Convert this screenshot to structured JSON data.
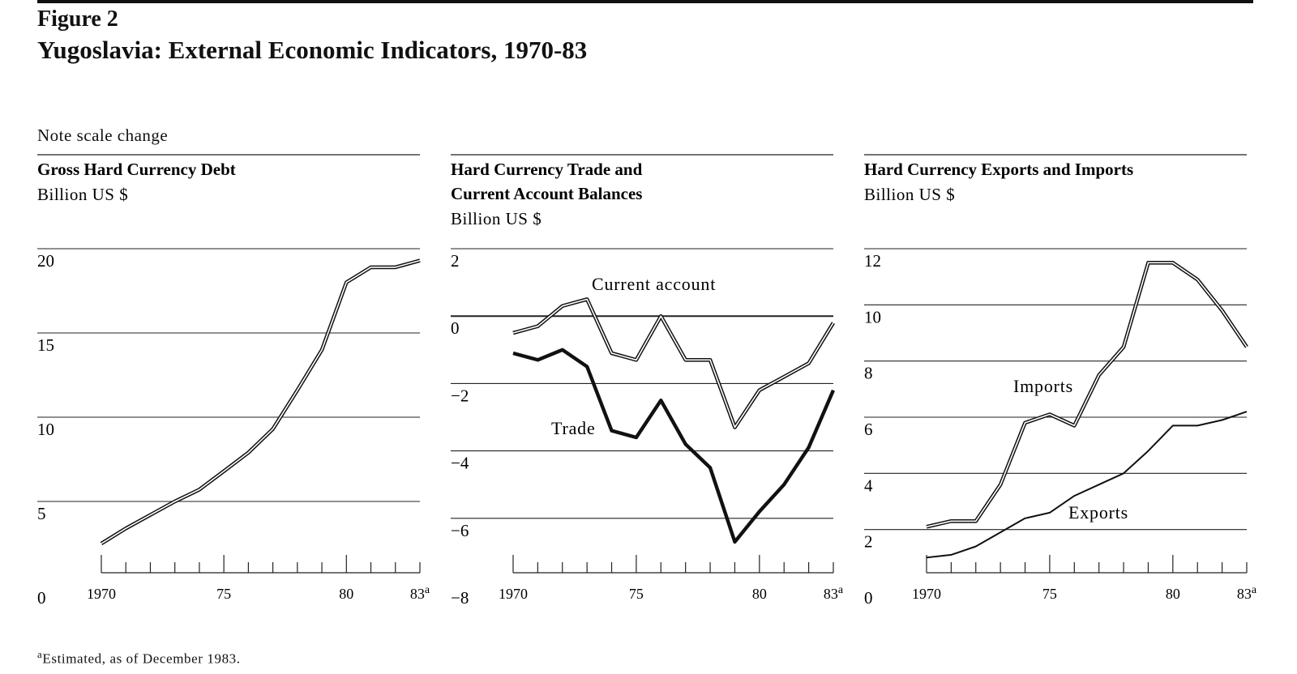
{
  "figure": {
    "label": "Figure 2",
    "title": "Yugoslavia: External Economic Indicators, 1970-83",
    "note": "Note scale change",
    "footnote_marker": "a",
    "footnote": "Estimated, as of December 1983."
  },
  "chart_data": [
    {
      "type": "line",
      "title": "Gross Hard Currency Debt",
      "ylabel": "Billion US $",
      "x": [
        1970,
        1971,
        1972,
        1973,
        1974,
        1975,
        1976,
        1977,
        1978,
        1979,
        1980,
        1981,
        1982,
        1983
      ],
      "xlim": [
        1970,
        1983
      ],
      "ylim": [
        0,
        20
      ],
      "yticks": [
        0,
        5,
        10,
        15,
        20
      ],
      "xtick_labels": [
        {
          "x": 1970,
          "label": "1970"
        },
        {
          "x": 1975,
          "label": "75"
        },
        {
          "x": 1980,
          "label": "80"
        },
        {
          "x": 1983,
          "label": "83",
          "sup": "a"
        }
      ],
      "grid": true,
      "series": [
        {
          "name": "",
          "style": "double",
          "values": [
            2.5,
            3.4,
            4.2,
            5.0,
            5.7,
            6.8,
            7.9,
            9.3,
            11.6,
            14.0,
            18.0,
            18.9,
            18.9,
            19.3
          ]
        }
      ]
    },
    {
      "type": "line",
      "title": "Hard Currency Trade and Current Account Balances",
      "title_lines": [
        "Hard Currency Trade and",
        "Current Account Balances"
      ],
      "ylabel": "Billion US $",
      "x": [
        1970,
        1971,
        1972,
        1973,
        1974,
        1975,
        1976,
        1977,
        1978,
        1979,
        1980,
        1981,
        1982,
        1983
      ],
      "xlim": [
        1970,
        1983
      ],
      "ylim": [
        -8,
        2
      ],
      "yticks": [
        -8,
        -6,
        -4,
        -2,
        0,
        2
      ],
      "ytick_labels": [
        "−8",
        "−6",
        "−4",
        "−2",
        "0",
        "2"
      ],
      "xtick_labels": [
        {
          "x": 1970,
          "label": "1970"
        },
        {
          "x": 1975,
          "label": "75"
        },
        {
          "x": 1980,
          "label": "80"
        },
        {
          "x": 1983,
          "label": "83",
          "sup": "a"
        }
      ],
      "grid": true,
      "series": [
        {
          "name": "Current account",
          "style": "double",
          "values": [
            -0.5,
            -0.3,
            0.3,
            0.5,
            -1.1,
            -1.3,
            0.0,
            -1.3,
            -1.3,
            -3.3,
            -2.2,
            -1.8,
            -1.4,
            -0.2
          ]
        },
        {
          "name": "Trade",
          "style": "bold",
          "values": [
            -1.1,
            -1.3,
            -1.0,
            -1.5,
            -3.4,
            -3.6,
            -2.5,
            -3.8,
            -4.5,
            -6.7,
            -5.8,
            -5.0,
            -3.9,
            -2.2
          ]
        }
      ]
    },
    {
      "type": "line",
      "title": "Hard Currency Exports and Imports",
      "ylabel": "Billion US $",
      "x": [
        1970,
        1971,
        1972,
        1973,
        1974,
        1975,
        1976,
        1977,
        1978,
        1979,
        1980,
        1981,
        1982,
        1983
      ],
      "xlim": [
        1970,
        1983
      ],
      "ylim": [
        0,
        12
      ],
      "yticks": [
        0,
        2,
        4,
        6,
        8,
        10,
        12
      ],
      "xtick_labels": [
        {
          "x": 1970,
          "label": "1970"
        },
        {
          "x": 1975,
          "label": "75"
        },
        {
          "x": 1980,
          "label": "80"
        },
        {
          "x": 1983,
          "label": "83",
          "sup": "a"
        }
      ],
      "grid": true,
      "series": [
        {
          "name": "Imports",
          "style": "double",
          "values": [
            2.1,
            2.3,
            2.3,
            3.6,
            5.8,
            6.1,
            5.7,
            7.5,
            8.5,
            11.5,
            11.5,
            10.9,
            9.8,
            8.5
          ]
        },
        {
          "name": "Exports",
          "style": "single",
          "values": [
            1.0,
            1.1,
            1.4,
            1.9,
            2.4,
            2.6,
            3.2,
            3.6,
            4.0,
            4.8,
            5.7,
            5.7,
            5.9,
            6.2
          ]
        }
      ]
    }
  ]
}
